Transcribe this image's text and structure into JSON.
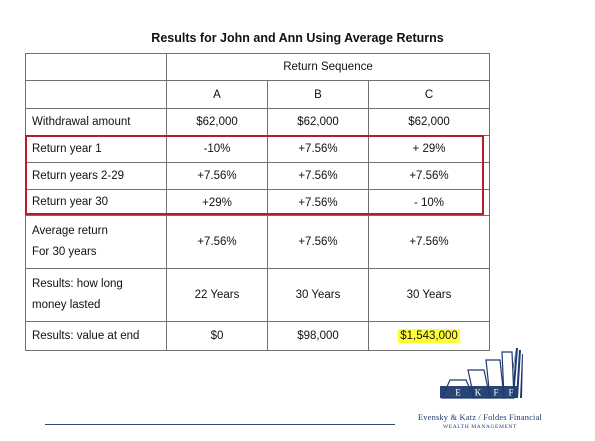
{
  "title": "Results for John and Ann Using Average Returns",
  "table": {
    "group_header": "Return Sequence",
    "columns": [
      "A",
      "B",
      "C"
    ],
    "rows": [
      {
        "label": "Withdrawal amount",
        "values": [
          "$62,000",
          "$62,000",
          "$62,000"
        ]
      },
      {
        "label": "Return year 1",
        "values": [
          "-10%",
          "+7.56%",
          "+ 29%"
        ]
      },
      {
        "label": "Return years 2-29",
        "values": [
          "+7.56%",
          "+7.56%",
          "+7.56%"
        ]
      },
      {
        "label": "Return year 30",
        "values": [
          "+29%",
          "+7.56%",
          "- 10%"
        ]
      },
      {
        "label_lines": [
          "Average return",
          "For 30 years"
        ],
        "values": [
          "+7.56%",
          "+7.56%",
          "+7.56%"
        ]
      },
      {
        "label_lines": [
          "Results: how long",
          "money lasted"
        ],
        "values": [
          "22 Years",
          "30 Years",
          "30 Years"
        ]
      },
      {
        "label": "Results: value at end",
        "values": [
          "$0",
          "$98,000",
          "$1,543,000"
        ]
      }
    ]
  },
  "logo": {
    "letters": [
      "E",
      "K",
      "F",
      "F"
    ],
    "name": "Evensky & Katz / Foldes Financial",
    "subtitle": "WEALTH MANAGEMENT"
  },
  "colors": {
    "highlight": "#ffff33",
    "red_box": "#c0182c",
    "logo_blue": "#1e3a6e"
  }
}
